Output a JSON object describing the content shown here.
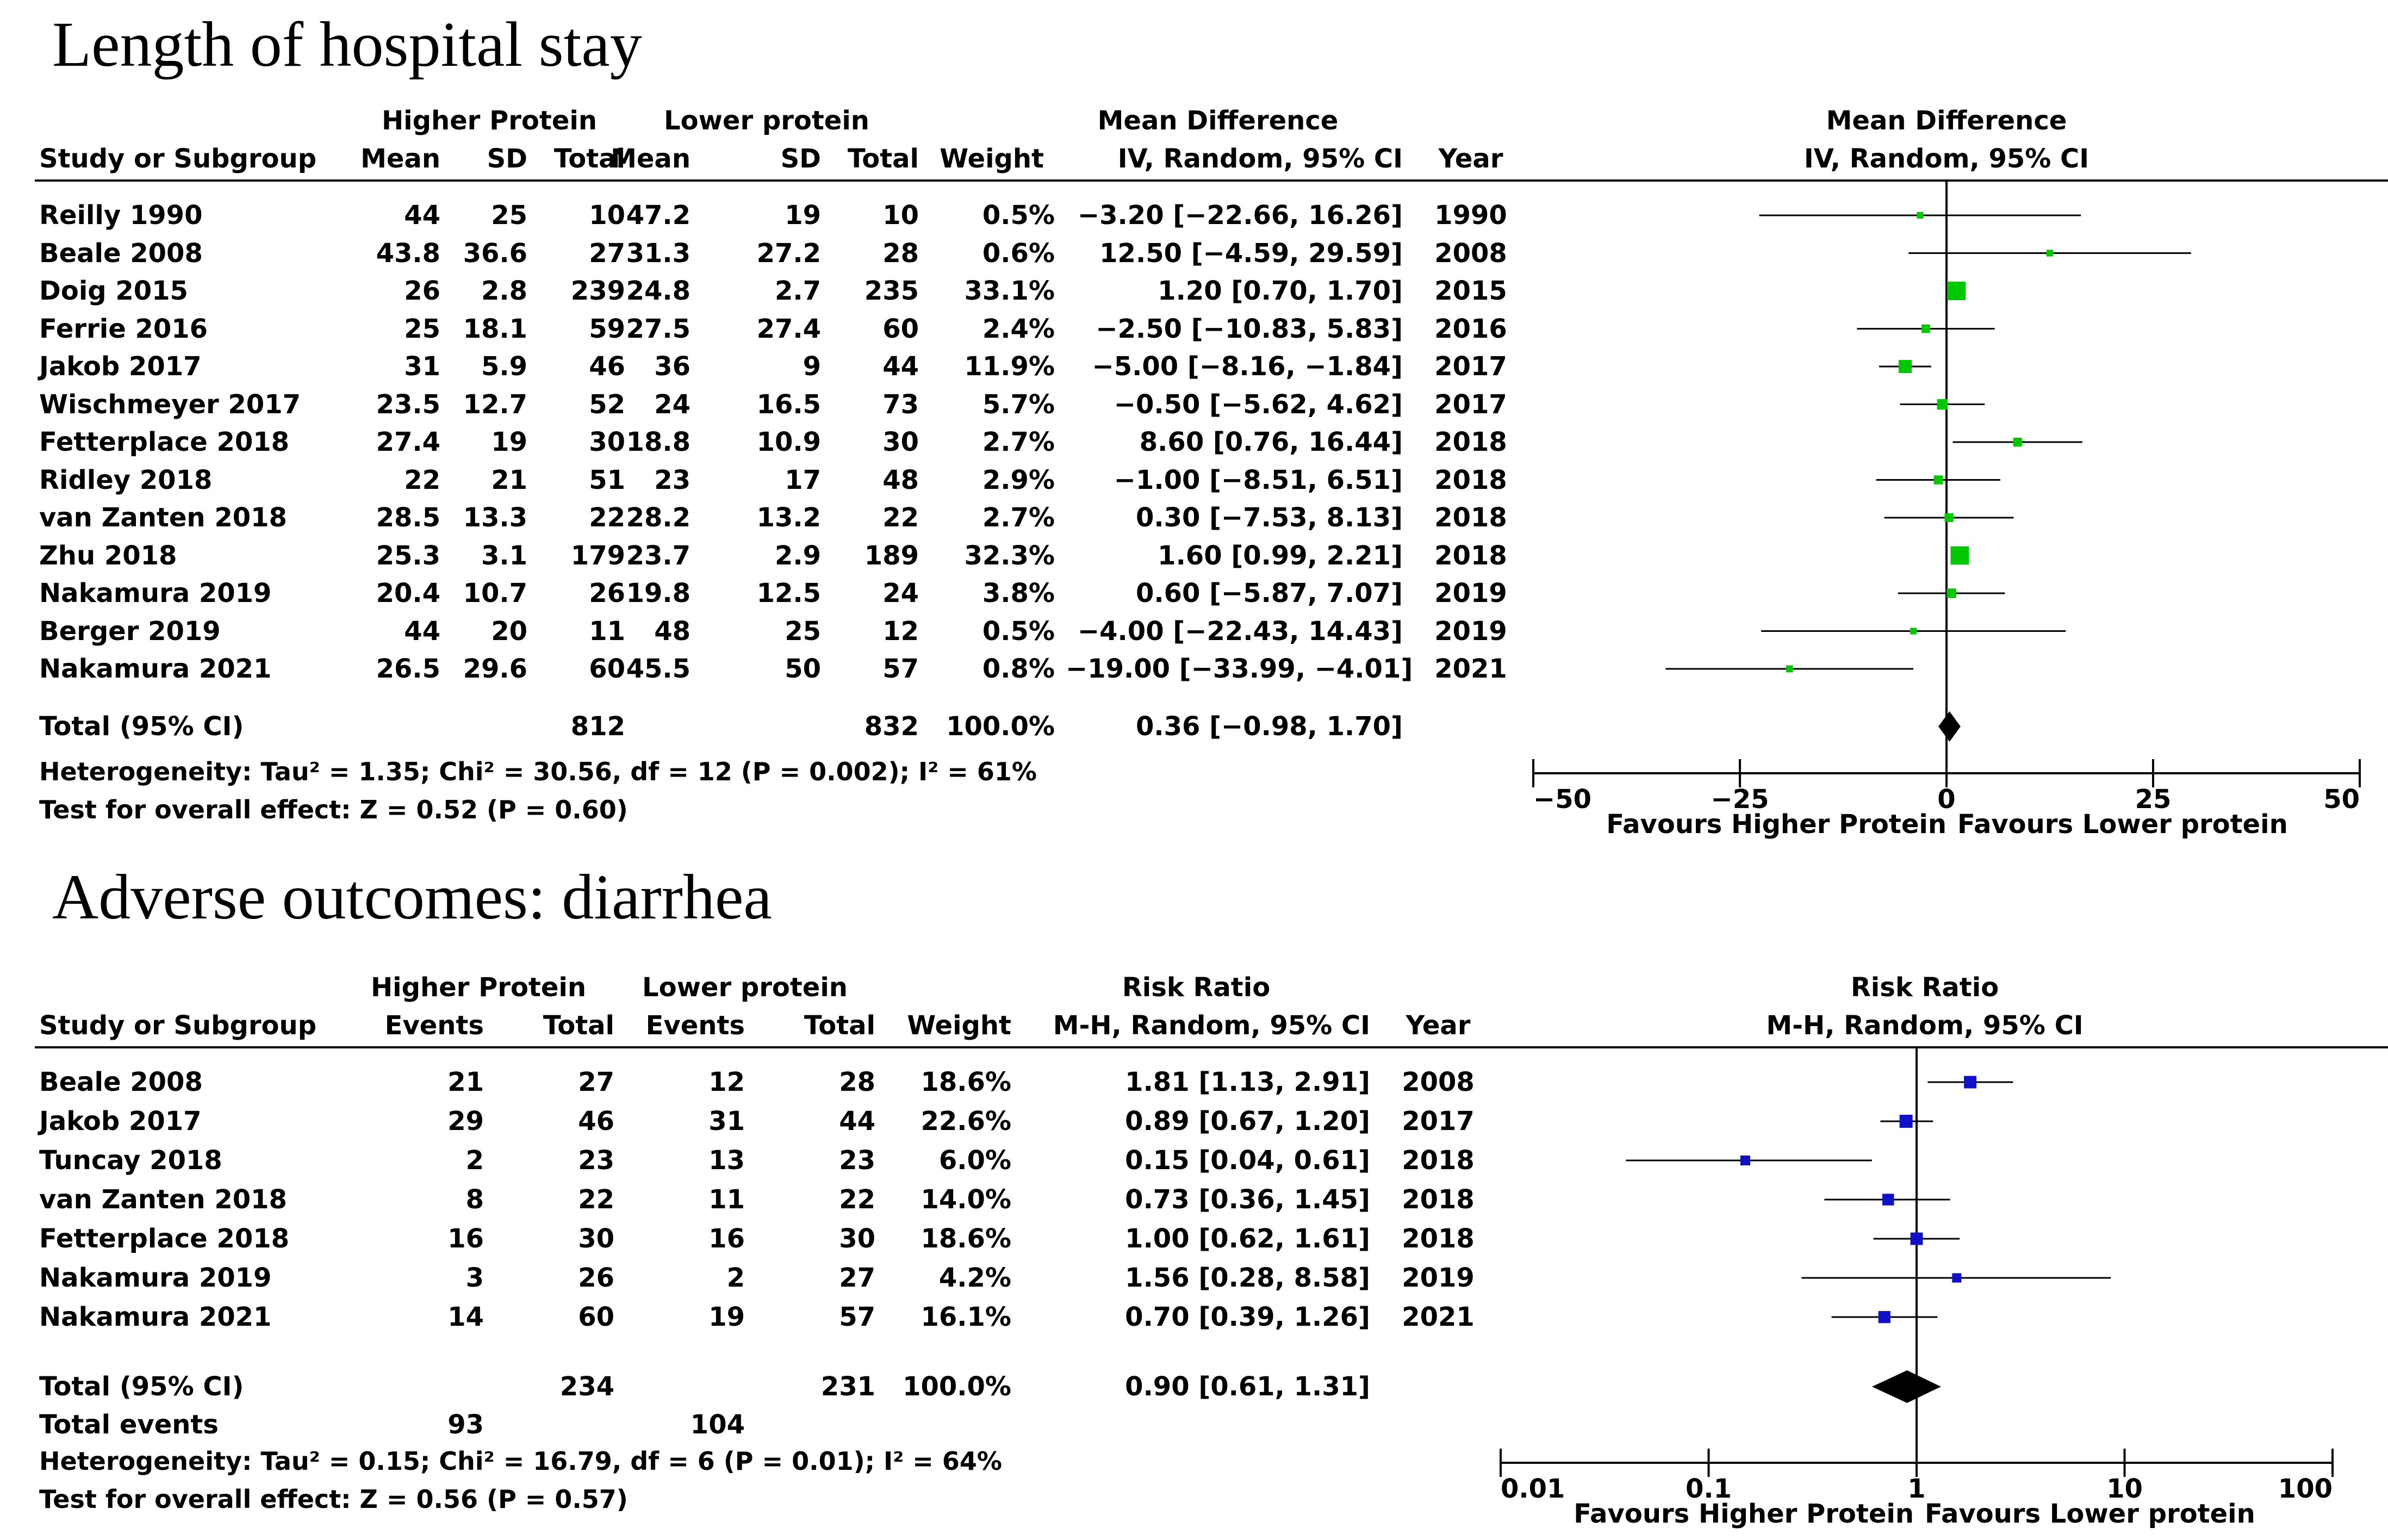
{
  "chart_data": [
    {
      "type": "forest",
      "title": "Length of hospital stay",
      "effect_measure": "Mean Difference",
      "method": "IV, Random, 95% CI",
      "scale": "linear",
      "xlim": [
        -50,
        50
      ],
      "ticks": [
        -50,
        -25,
        0,
        25,
        50
      ],
      "tick_labels": [
        "−50",
        "−25",
        "0",
        "25",
        "50"
      ],
      "favours_left": "Favours Higher Protein",
      "favours_right": "Favours Lower protein",
      "marker_color": "#00c800",
      "headers": {
        "group1": "Higher Protein",
        "group2": "Lower protein",
        "effect": "Mean Difference",
        "study": "Study or Subgroup",
        "mean": "Mean",
        "sd": "SD",
        "total": "Total",
        "weight": "Weight",
        "ci": "IV, Random, 95% CI",
        "year": "Year"
      },
      "studies": [
        {
          "name": "Reilly 1990",
          "c1": "44",
          "c2": "25",
          "c3": "10",
          "c4": "47.2",
          "c5": "19",
          "c6": "10",
          "weight": "0.5%",
          "ci_text": "−3.20 [−22.66, 16.26]",
          "year": "1990",
          "est": -3.2,
          "lo": -22.66,
          "hi": 16.26,
          "w": 0.5
        },
        {
          "name": "Beale 2008",
          "c1": "43.8",
          "c2": "36.6",
          "c3": "27",
          "c4": "31.3",
          "c5": "27.2",
          "c6": "28",
          "weight": "0.6%",
          "ci_text": "12.50 [−4.59, 29.59]",
          "year": "2008",
          "est": 12.5,
          "lo": -4.59,
          "hi": 29.59,
          "w": 0.6
        },
        {
          "name": "Doig 2015",
          "c1": "26",
          "c2": "2.8",
          "c3": "239",
          "c4": "24.8",
          "c5": "2.7",
          "c6": "235",
          "weight": "33.1%",
          "ci_text": "1.20 [0.70, 1.70]",
          "year": "2015",
          "est": 1.2,
          "lo": 0.7,
          "hi": 1.7,
          "w": 33.1
        },
        {
          "name": "Ferrie 2016",
          "c1": "25",
          "c2": "18.1",
          "c3": "59",
          "c4": "27.5",
          "c5": "27.4",
          "c6": "60",
          "weight": "2.4%",
          "ci_text": "−2.50 [−10.83, 5.83]",
          "year": "2016",
          "est": -2.5,
          "lo": -10.83,
          "hi": 5.83,
          "w": 2.4
        },
        {
          "name": "Jakob 2017",
          "c1": "31",
          "c2": "5.9",
          "c3": "46",
          "c4": "36",
          "c5": "9",
          "c6": "44",
          "weight": "11.9%",
          "ci_text": "−5.00 [−8.16, −1.84]",
          "year": "2017",
          "est": -5.0,
          "lo": -8.16,
          "hi": -1.84,
          "w": 11.9
        },
        {
          "name": "Wischmeyer 2017",
          "c1": "23.5",
          "c2": "12.7",
          "c3": "52",
          "c4": "24",
          "c5": "16.5",
          "c6": "73",
          "weight": "5.7%",
          "ci_text": "−0.50 [−5.62, 4.62]",
          "year": "2017",
          "est": -0.5,
          "lo": -5.62,
          "hi": 4.62,
          "w": 5.7
        },
        {
          "name": "Fetterplace 2018",
          "c1": "27.4",
          "c2": "19",
          "c3": "30",
          "c4": "18.8",
          "c5": "10.9",
          "c6": "30",
          "weight": "2.7%",
          "ci_text": "8.60 [0.76, 16.44]",
          "year": "2018",
          "est": 8.6,
          "lo": 0.76,
          "hi": 16.44,
          "w": 2.7
        },
        {
          "name": "Ridley 2018",
          "c1": "22",
          "c2": "21",
          "c3": "51",
          "c4": "23",
          "c5": "17",
          "c6": "48",
          "weight": "2.9%",
          "ci_text": "−1.00 [−8.51, 6.51]",
          "year": "2018",
          "est": -1.0,
          "lo": -8.51,
          "hi": 6.51,
          "w": 2.9
        },
        {
          "name": "van Zanten 2018",
          "c1": "28.5",
          "c2": "13.3",
          "c3": "22",
          "c4": "28.2",
          "c5": "13.2",
          "c6": "22",
          "weight": "2.7%",
          "ci_text": "0.30 [−7.53, 8.13]",
          "year": "2018",
          "est": 0.3,
          "lo": -7.53,
          "hi": 8.13,
          "w": 2.7
        },
        {
          "name": "Zhu 2018",
          "c1": "25.3",
          "c2": "3.1",
          "c3": "179",
          "c4": "23.7",
          "c5": "2.9",
          "c6": "189",
          "weight": "32.3%",
          "ci_text": "1.60 [0.99, 2.21]",
          "year": "2018",
          "est": 1.6,
          "lo": 0.99,
          "hi": 2.21,
          "w": 32.3
        },
        {
          "name": "Nakamura 2019",
          "c1": "20.4",
          "c2": "10.7",
          "c3": "26",
          "c4": "19.8",
          "c5": "12.5",
          "c6": "24",
          "weight": "3.8%",
          "ci_text": "0.60 [−5.87, 7.07]",
          "year": "2019",
          "est": 0.6,
          "lo": -5.87,
          "hi": 7.07,
          "w": 3.8
        },
        {
          "name": "Berger 2019",
          "c1": "44",
          "c2": "20",
          "c3": "11",
          "c4": "48",
          "c5": "25",
          "c6": "12",
          "weight": "0.5%",
          "ci_text": "−4.00 [−22.43, 14.43]",
          "year": "2019",
          "est": -4.0,
          "lo": -22.43,
          "hi": 14.43,
          "w": 0.5
        },
        {
          "name": "Nakamura 2021",
          "c1": "26.5",
          "c2": "29.6",
          "c3": "60",
          "c4": "45.5",
          "c5": "50",
          "c6": "57",
          "weight": "0.8%",
          "ci_text": "−19.00 [−33.99, −4.01]",
          "year": "2021",
          "est": -19.0,
          "lo": -33.99,
          "hi": -4.01,
          "w": 0.8
        }
      ],
      "total": {
        "label": "Total (95% CI)",
        "n1": "812",
        "n2": "832",
        "weight": "100.0%",
        "ci_text": "0.36 [−0.98, 1.70]",
        "est": 0.36,
        "lo": -0.98,
        "hi": 1.7
      },
      "heterogeneity": "Heterogeneity: Tau² = 1.35; Chi² = 30.56, df = 12 (P = 0.002); I² = 61%",
      "overall_test": "Test for overall effect: Z = 0.52 (P = 0.60)"
    },
    {
      "type": "forest",
      "title": "Adverse outcomes: diarrhea",
      "effect_measure": "Risk Ratio",
      "method": "M-H, Random, 95% CI",
      "scale": "log",
      "xlim": [
        0.01,
        100
      ],
      "ticks": [
        0.01,
        0.1,
        1,
        10,
        100
      ],
      "tick_labels": [
        "0.01",
        "0.1",
        "1",
        "10",
        "100"
      ],
      "favours_left": "Favours Higher Protein",
      "favours_right": "Favours Lower protein",
      "marker_color": "#1010c8",
      "headers": {
        "group1": "Higher Protein",
        "group2": "Lower protein",
        "effect": "Risk Ratio",
        "study": "Study or Subgroup",
        "events": "Events",
        "total": "Total",
        "weight": "Weight",
        "ci": "M-H, Random, 95% CI",
        "year": "Year"
      },
      "studies": [
        {
          "name": "Beale 2008",
          "c1": "21",
          "c2": "27",
          "c3": "12",
          "c4": "28",
          "weight": "18.6%",
          "ci_text": "1.81 [1.13, 2.91]",
          "year": "2008",
          "est": 1.81,
          "lo": 1.13,
          "hi": 2.91,
          "w": 18.6
        },
        {
          "name": "Jakob 2017",
          "c1": "29",
          "c2": "46",
          "c3": "31",
          "c4": "44",
          "weight": "22.6%",
          "ci_text": "0.89 [0.67, 1.20]",
          "year": "2017",
          "est": 0.89,
          "lo": 0.67,
          "hi": 1.2,
          "w": 22.6
        },
        {
          "name": "Tuncay 2018",
          "c1": "2",
          "c2": "23",
          "c3": "13",
          "c4": "23",
          "weight": "6.0%",
          "ci_text": "0.15 [0.04, 0.61]",
          "year": "2018",
          "est": 0.15,
          "lo": 0.04,
          "hi": 0.61,
          "w": 6.0
        },
        {
          "name": "van Zanten 2018",
          "c1": "8",
          "c2": "22",
          "c3": "11",
          "c4": "22",
          "weight": "14.0%",
          "ci_text": "0.73 [0.36, 1.45]",
          "year": "2018",
          "est": 0.73,
          "lo": 0.36,
          "hi": 1.45,
          "w": 14.0
        },
        {
          "name": "Fetterplace 2018",
          "c1": "16",
          "c2": "30",
          "c3": "16",
          "c4": "30",
          "weight": "18.6%",
          "ci_text": "1.00 [0.62, 1.61]",
          "year": "2018",
          "est": 1.0,
          "lo": 0.62,
          "hi": 1.61,
          "w": 18.6
        },
        {
          "name": "Nakamura 2019",
          "c1": "3",
          "c2": "26",
          "c3": "2",
          "c4": "27",
          "weight": "4.2%",
          "ci_text": "1.56 [0.28, 8.58]",
          "year": "2019",
          "est": 1.56,
          "lo": 0.28,
          "hi": 8.58,
          "w": 4.2
        },
        {
          "name": "Nakamura 2021",
          "c1": "14",
          "c2": "60",
          "c3": "19",
          "c4": "57",
          "weight": "16.1%",
          "ci_text": "0.70 [0.39, 1.26]",
          "year": "2021",
          "est": 0.7,
          "lo": 0.39,
          "hi": 1.26,
          "w": 16.1
        }
      ],
      "total": {
        "label": "Total (95% CI)",
        "n1": "234",
        "n2": "231",
        "weight": "100.0%",
        "ci_text": "0.90 [0.61, 1.31]",
        "est": 0.9,
        "lo": 0.61,
        "hi": 1.31
      },
      "total_events": {
        "label": "Total events",
        "e1": "93",
        "e2": "104"
      },
      "heterogeneity": "Heterogeneity: Tau² = 0.15; Chi² = 16.79, df = 6 (P = 0.01); I² = 64%",
      "overall_test": "Test for overall effect: Z = 0.56 (P = 0.57)"
    }
  ]
}
